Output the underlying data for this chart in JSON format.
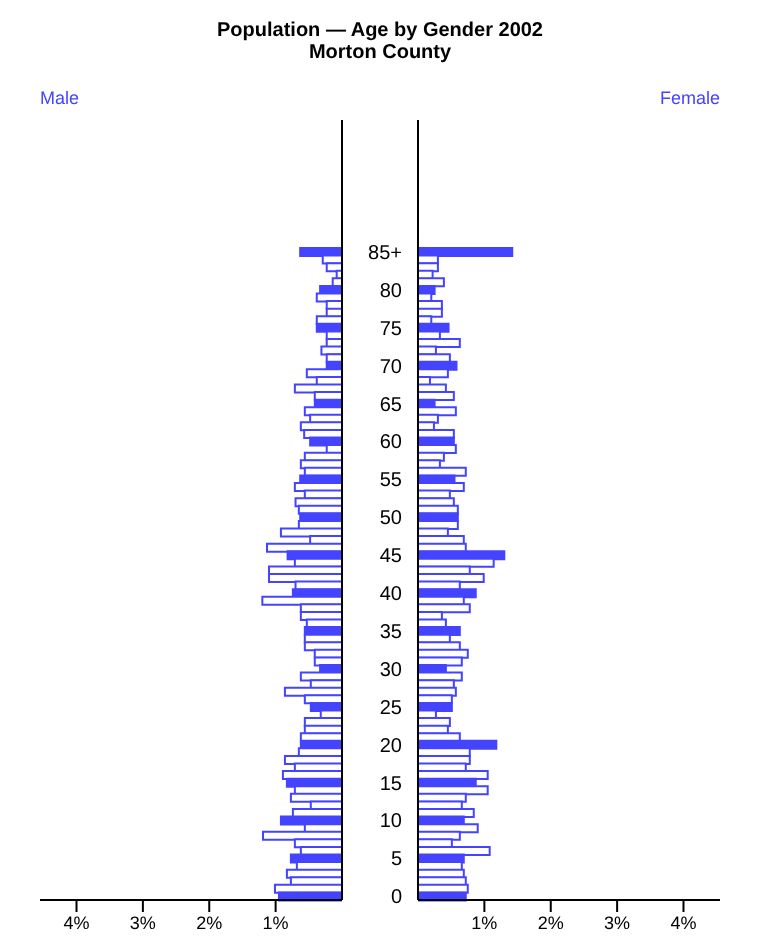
{
  "chart_data": [
    {
      "type": "bar",
      "orientation": "horizontal",
      "title": "Population — Age by Gender 2002",
      "subtitle": "Morton County",
      "tick_labels": "x",
      "categories": [
        "85+",
        null,
        null,
        null,
        null,
        "80",
        null,
        null,
        null,
        null,
        "75",
        null,
        null,
        null,
        null,
        "70",
        null,
        null,
        null,
        null,
        "65",
        null,
        null,
        null,
        null,
        "60",
        null,
        null,
        null,
        null,
        "55",
        null,
        null,
        null,
        null,
        "50",
        null,
        null,
        null,
        null,
        "45",
        null,
        null,
        null,
        null,
        "40",
        null,
        null,
        null,
        null,
        "35",
        null,
        null,
        null,
        null,
        "30",
        null,
        null,
        null,
        null,
        "25",
        null,
        null,
        null,
        null,
        "20",
        null,
        null,
        null,
        null,
        "15",
        null,
        null,
        null,
        null,
        "10",
        null,
        null,
        null,
        null,
        "5",
        null,
        null,
        null,
        null,
        "0"
      ],
      "series": [
        {
          "name": "Male",
          "color": "#4444ff",
          "values": [
            0.63,
            0.29,
            0.23,
            0.08,
            0.14,
            0.33,
            0.38,
            0.23,
            0.23,
            0.38,
            0.38,
            0.23,
            0.23,
            0.31,
            0.23,
            0.23,
            0.53,
            0.38,
            0.71,
            0.41,
            0.41,
            0.56,
            0.48,
            0.62,
            0.57,
            0.48,
            0.23,
            0.56,
            0.62,
            0.56,
            0.63,
            0.71,
            0.56,
            0.7,
            0.65,
            0.63,
            0.65,
            0.92,
            0.48,
            1.13,
            0.82,
            0.71,
            1.1,
            1.1,
            0.7,
            0.74,
            1.2,
            0.62,
            0.62,
            0.53,
            0.56,
            0.56,
            0.56,
            0.41,
            0.41,
            0.33,
            0.62,
            0.47,
            0.86,
            0.56,
            0.47,
            0.32,
            0.56,
            0.56,
            0.62,
            0.62,
            0.65,
            0.86,
            0.71,
            0.89,
            0.83,
            0.71,
            0.77,
            0.47,
            0.74,
            0.92,
            0.56,
            1.19,
            0.71,
            0.62,
            0.77,
            0.68,
            0.83,
            0.77,
            1.01,
            0.95
          ],
          "colors": [
            "#4444ff",
            "#ffffff",
            "#ffffff",
            "#ffffff",
            "#ffffff",
            "#4444ff",
            "#ffffff",
            "#ffffff",
            "#ffffff",
            "#ffffff",
            "#4444ff",
            "#ffffff",
            "#ffffff",
            "#ffffff",
            "#ffffff",
            "#4444ff",
            "#ffffff",
            "#ffffff",
            "#ffffff",
            "#ffffff",
            "#4444ff",
            "#ffffff",
            "#ffffff",
            "#ffffff",
            "#ffffff",
            "#4444ff",
            "#ffffff",
            "#ffffff",
            "#ffffff",
            "#ffffff",
            "#4444ff",
            "#ffffff",
            "#ffffff",
            "#ffffff",
            "#ffffff",
            "#4444ff",
            "#ffffff",
            "#ffffff",
            "#ffffff",
            "#ffffff",
            "#4444ff",
            "#ffffff",
            "#ffffff",
            "#ffffff",
            "#ffffff",
            "#4444ff",
            "#ffffff",
            "#ffffff",
            "#ffffff",
            "#ffffff",
            "#4444ff",
            "#ffffff",
            "#ffffff",
            "#ffffff",
            "#ffffff",
            "#4444ff",
            "#ffffff",
            "#ffffff",
            "#ffffff",
            "#ffffff",
            "#4444ff",
            "#ffffff",
            "#ffffff",
            "#ffffff",
            "#ffffff",
            "#4444ff",
            "#ffffff",
            "#ffffff",
            "#ffffff",
            "#ffffff",
            "#4444ff",
            "#ffffff",
            "#ffffff",
            "#ffffff",
            "#ffffff",
            "#4444ff",
            "#ffffff",
            "#ffffff",
            "#ffffff",
            "#ffffff",
            "#4444ff",
            "#ffffff",
            "#ffffff",
            "#ffffff",
            "#ffffff",
            "#4444ff"
          ]
        }
      ],
      "xlim": [
        4.55,
        0
      ],
      "xticks": [
        {
          "value": 4,
          "label": "4%"
        },
        {
          "value": 3,
          "label": "3%"
        },
        {
          "value": 2,
          "label": "2%"
        },
        {
          "value": 1,
          "label": "1%"
        }
      ]
    },
    {
      "type": "bar",
      "orientation": "horizontal",
      "categories": [
        "85+",
        null,
        null,
        null,
        null,
        "80",
        null,
        null,
        null,
        null,
        "75",
        null,
        null,
        null,
        null,
        "70",
        null,
        null,
        null,
        null,
        "65",
        null,
        null,
        null,
        null,
        "60",
        null,
        null,
        null,
        null,
        "55",
        null,
        null,
        null,
        null,
        "50",
        null,
        null,
        null,
        null,
        "45",
        null,
        null,
        null,
        null,
        "40",
        null,
        null,
        null,
        null,
        "35",
        null,
        null,
        null,
        null,
        "30",
        null,
        null,
        null,
        null,
        "25",
        null,
        null,
        null,
        null,
        "20",
        null,
        null,
        null,
        null,
        "15",
        null,
        null,
        null,
        null,
        "10",
        null,
        null,
        null,
        null,
        "5",
        null,
        null,
        null,
        null,
        "0"
      ],
      "series": [
        {
          "name": "Female",
          "color": "#4444ff",
          "values": [
            1.42,
            0.3,
            0.3,
            0.22,
            0.39,
            0.25,
            0.2,
            0.36,
            0.36,
            0.2,
            0.46,
            0.33,
            0.63,
            0.27,
            0.48,
            0.58,
            0.45,
            0.18,
            0.42,
            0.54,
            0.25,
            0.57,
            0.3,
            0.24,
            0.54,
            0.54,
            0.57,
            0.39,
            0.33,
            0.72,
            0.55,
            0.69,
            0.48,
            0.54,
            0.6,
            0.6,
            0.6,
            0.45,
            0.69,
            0.72,
            1.3,
            1.14,
            0.78,
            0.99,
            0.63,
            0.87,
            0.69,
            0.78,
            0.36,
            0.42,
            0.63,
            0.48,
            0.63,
            0.75,
            0.66,
            0.42,
            0.66,
            0.54,
            0.57,
            0.51,
            0.51,
            0.27,
            0.48,
            0.45,
            0.63,
            1.18,
            0.78,
            0.78,
            0.72,
            1.05,
            0.87,
            1.05,
            0.72,
            0.66,
            0.84,
            0.69,
            0.9,
            0.63,
            0.51,
            1.08,
            0.69,
            0.66,
            0.69,
            0.72,
            0.75,
            0.72
          ],
          "colors": [
            "#4444ff",
            "#ffffff",
            "#ffffff",
            "#ffffff",
            "#ffffff",
            "#4444ff",
            "#ffffff",
            "#ffffff",
            "#ffffff",
            "#ffffff",
            "#4444ff",
            "#ffffff",
            "#ffffff",
            "#ffffff",
            "#ffffff",
            "#4444ff",
            "#ffffff",
            "#ffffff",
            "#ffffff",
            "#ffffff",
            "#4444ff",
            "#ffffff",
            "#ffffff",
            "#ffffff",
            "#ffffff",
            "#4444ff",
            "#ffffff",
            "#ffffff",
            "#ffffff",
            "#ffffff",
            "#4444ff",
            "#ffffff",
            "#ffffff",
            "#ffffff",
            "#ffffff",
            "#4444ff",
            "#ffffff",
            "#ffffff",
            "#ffffff",
            "#ffffff",
            "#4444ff",
            "#ffffff",
            "#ffffff",
            "#ffffff",
            "#ffffff",
            "#4444ff",
            "#ffffff",
            "#ffffff",
            "#ffffff",
            "#ffffff",
            "#4444ff",
            "#ffffff",
            "#ffffff",
            "#ffffff",
            "#ffffff",
            "#4444ff",
            "#ffffff",
            "#ffffff",
            "#ffffff",
            "#ffffff",
            "#4444ff",
            "#ffffff",
            "#ffffff",
            "#ffffff",
            "#ffffff",
            "#4444ff",
            "#ffffff",
            "#ffffff",
            "#ffffff",
            "#ffffff",
            "#4444ff",
            "#ffffff",
            "#ffffff",
            "#ffffff",
            "#ffffff",
            "#4444ff",
            "#ffffff",
            "#ffffff",
            "#ffffff",
            "#ffffff",
            "#4444ff",
            "#ffffff",
            "#ffffff",
            "#ffffff",
            "#ffffff",
            "#4444ff"
          ]
        }
      ],
      "xlim": [
        0,
        4.55
      ],
      "xticks": [
        {
          "value": 1,
          "label": "1%"
        },
        {
          "value": 2,
          "label": "2%"
        },
        {
          "value": 3,
          "label": "3%"
        },
        {
          "value": 4,
          "label": "4%"
        }
      ]
    }
  ]
}
